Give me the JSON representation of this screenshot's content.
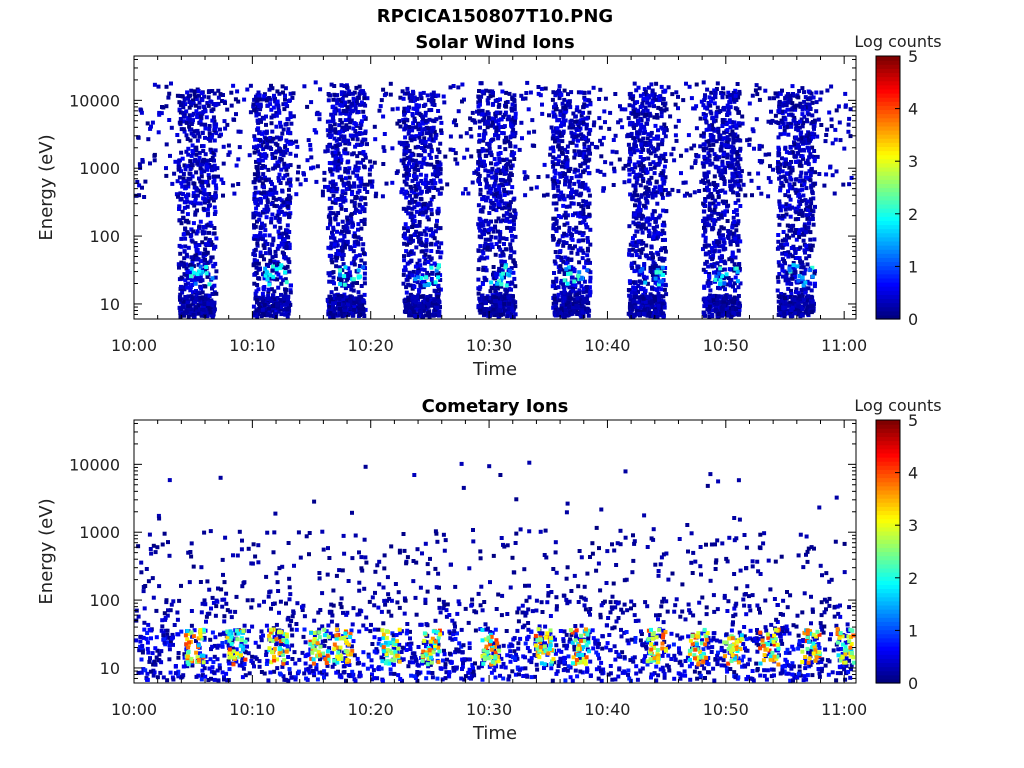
{
  "page": {
    "title": "RPCICA150807T10.PNG"
  },
  "chart_data": [
    {
      "type": "heatmap",
      "title": "Solar Wind Ions",
      "xlabel": "Time",
      "ylabel": "Energy (eV)",
      "x_ticks": [
        "10:00",
        "10:10",
        "10:20",
        "10:30",
        "10:40",
        "10:50",
        "11:00"
      ],
      "x_range": [
        "10:00",
        "11:01"
      ],
      "y_scale": "log",
      "y_ticks": [
        10,
        100,
        1000,
        10000
      ],
      "y_range": [
        6,
        45000
      ],
      "colorbar": {
        "label": "Log counts",
        "range": [
          0,
          5
        ],
        "ticks": [
          0,
          1,
          2,
          3,
          4,
          5
        ],
        "colormap": "jet"
      },
      "grid": false,
      "description_of_features": {
        "sweep_bursts_minutes": [
          5.2,
          11.5,
          17.8,
          24.2,
          30.5,
          36.8,
          43.2,
          49.5,
          55.8
        ],
        "background_energy_range_eV": [
          400,
          20000
        ],
        "burst_low_energy_peak_eV": 30,
        "typical_log_counts": [
          0,
          2
        ]
      }
    },
    {
      "type": "heatmap",
      "title": "Cometary Ions",
      "xlabel": "Time",
      "ylabel": "Energy (eV)",
      "x_ticks": [
        "10:00",
        "10:10",
        "10:20",
        "10:30",
        "10:40",
        "10:50",
        "11:00"
      ],
      "x_range": [
        "10:00",
        "11:01"
      ],
      "y_scale": "log",
      "y_ticks": [
        10,
        100,
        1000,
        10000
      ],
      "y_range": [
        6,
        45000
      ],
      "colorbar": {
        "label": "Log counts",
        "range": [
          0,
          5
        ],
        "ticks": [
          0,
          1,
          2,
          3,
          4,
          5
        ],
        "colormap": "jet"
      },
      "grid": false,
      "description_of_features": {
        "dense_band_energy_range_eV": [
          6,
          40
        ],
        "hot_spots_minutes": [
          5.0,
          8.5,
          12.0,
          15.5,
          17.5,
          21.5,
          25.0,
          30.0,
          34.5,
          37.5,
          44.0,
          47.5,
          50.5,
          53.5,
          57.0,
          60.0
        ],
        "max_log_counts": 4.2
      }
    }
  ]
}
